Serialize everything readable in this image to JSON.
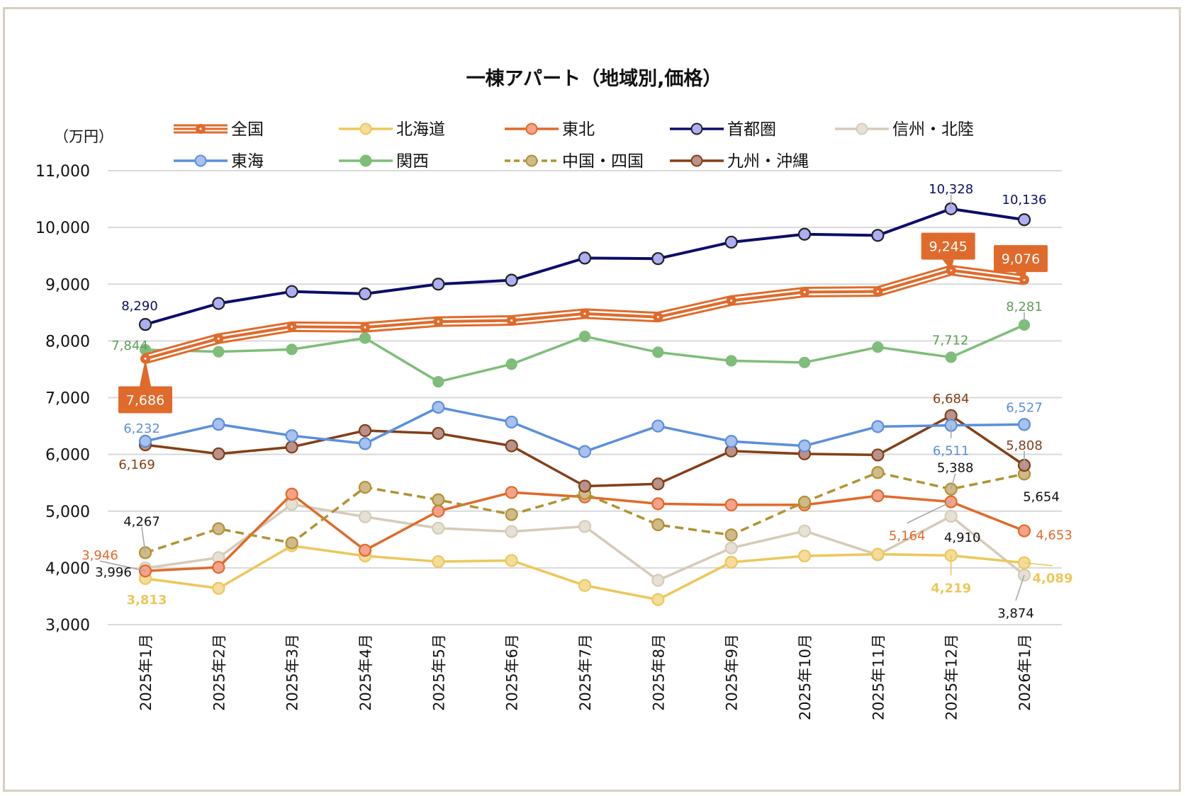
{
  "chart_data": {
    "type": "line",
    "title": "一棟アパート（地域別,価格）",
    "ylabel": "（万円）",
    "xlabel": "",
    "ylim": [
      3000,
      11000
    ],
    "yticks": [
      3000,
      4000,
      5000,
      6000,
      7000,
      8000,
      9000,
      10000,
      11000
    ],
    "ytick_labels": [
      "3,000",
      "4,000",
      "5,000",
      "6,000",
      "7,000",
      "8,000",
      "9,000",
      "10,000",
      "11,000"
    ],
    "grid": true,
    "legend_position": "top",
    "categories": [
      "2025年1月",
      "2025年2月",
      "2025年3月",
      "2025年4月",
      "2025年5月",
      "2025年6月",
      "2025年7月",
      "2025年8月",
      "2025年9月",
      "2025年10月",
      "2025年11月",
      "2025年12月",
      "2026年1月"
    ],
    "series": [
      {
        "name": "全国",
        "color": "#e06a2b",
        "marker_fill": "#e06a2b",
        "style": "triple",
        "values": [
          7686,
          8040,
          8250,
          8240,
          8340,
          8360,
          8480,
          8420,
          8710,
          8860,
          8870,
          9245,
          9076
        ]
      },
      {
        "name": "北海道",
        "color": "#ecc85a",
        "marker_fill": "#f5dc9c",
        "style": "solid",
        "values": [
          3813,
          3640,
          4390,
          4210,
          4110,
          4130,
          3690,
          3440,
          4100,
          4210,
          4240,
          4219,
          4089
        ]
      },
      {
        "name": "東北",
        "color": "#e06a2b",
        "marker_fill": "#f4a38a",
        "style": "solid",
        "values": [
          3946,
          4010,
          5300,
          4310,
          5000,
          5330,
          5250,
          5130,
          5110,
          5110,
          5270,
          5164,
          4653
        ]
      },
      {
        "name": "首都圏",
        "color": "#0d0d6b",
        "marker_fill": "#aeaef5",
        "marker_stroke": "#222222",
        "style": "solid",
        "values": [
          8290,
          8660,
          8870,
          8830,
          9000,
          9070,
          9460,
          9450,
          9740,
          9880,
          9860,
          10328,
          10136
        ]
      },
      {
        "name": "信州・北陸",
        "color": "#d5cbb8",
        "marker_fill": "#e7e0d5",
        "style": "solid",
        "values": [
          3996,
          4180,
          5120,
          4900,
          4700,
          4640,
          4730,
          3780,
          4350,
          4650,
          4230,
          4910,
          3874
        ]
      },
      {
        "name": "東海",
        "color": "#5b8fdc",
        "marker_fill": "#a8c1ef",
        "style": "solid",
        "values": [
          6232,
          6530,
          6330,
          6190,
          6830,
          6570,
          6050,
          6500,
          6230,
          6150,
          6490,
          6511,
          6527
        ]
      },
      {
        "name": "関西",
        "color": "#7fbd7a",
        "marker_fill": "#7fbd7a",
        "style": "solid",
        "values": [
          7844,
          7810,
          7850,
          8050,
          7280,
          7590,
          8080,
          7800,
          7650,
          7620,
          7890,
          7712,
          8281
        ]
      },
      {
        "name": "中国・四国",
        "color": "#b09333",
        "marker_fill": "#d0b98a",
        "style": "dashed",
        "values": [
          4267,
          4690,
          4440,
          5420,
          5200,
          4940,
          5310,
          4760,
          4580,
          5160,
          5680,
          5388,
          5654
        ]
      },
      {
        "name": "九州・沖縄",
        "color": "#843f17",
        "marker_fill": "#b8928b",
        "style": "solid",
        "values": [
          6169,
          6010,
          6130,
          6420,
          6370,
          6150,
          5440,
          5480,
          6060,
          6010,
          5990,
          6684,
          5808
        ]
      }
    ],
    "annotations": [
      {
        "series": "全国",
        "index": 0,
        "text": "7,686",
        "boxed": true
      },
      {
        "series": "全国",
        "index": 11,
        "text": "9,245",
        "boxed": true
      },
      {
        "series": "全国",
        "index": 12,
        "text": "9,076",
        "boxed": true
      },
      {
        "series": "首都圏",
        "index": 0,
        "text": "8,290"
      },
      {
        "series": "首都圏",
        "index": 11,
        "text": "10,328"
      },
      {
        "series": "首都圏",
        "index": 12,
        "text": "10,136"
      },
      {
        "series": "関西",
        "index": 0,
        "text": "7,844"
      },
      {
        "series": "関西",
        "index": 11,
        "text": "7,712"
      },
      {
        "series": "関西",
        "index": 12,
        "text": "8,281"
      },
      {
        "series": "東海",
        "index": 0,
        "text": "6,232"
      },
      {
        "series": "東海",
        "index": 11,
        "text": "6,511"
      },
      {
        "series": "東海",
        "index": 12,
        "text": "6,527"
      },
      {
        "series": "九州・沖縄",
        "index": 0,
        "text": "6,169"
      },
      {
        "series": "九州・沖縄",
        "index": 11,
        "text": "6,684"
      },
      {
        "series": "九州・沖縄",
        "index": 12,
        "text": "5,808"
      },
      {
        "series": "中国・四国",
        "index": 0,
        "text": "4,267"
      },
      {
        "series": "中国・四国",
        "index": 11,
        "text": "5,388"
      },
      {
        "series": "中国・四国",
        "index": 12,
        "text": "5,654"
      },
      {
        "series": "東北",
        "index": 0,
        "text": "3,946"
      },
      {
        "series": "東北",
        "index": 11,
        "text": "5,164"
      },
      {
        "series": "東北",
        "index": 12,
        "text": "4,653"
      },
      {
        "series": "信州・北陸",
        "index": 0,
        "text": "3,996"
      },
      {
        "series": "信州・北陸",
        "index": 11,
        "text": "4,910"
      },
      {
        "series": "信州・北陸",
        "index": 12,
        "text": "3,874"
      },
      {
        "series": "北海道",
        "index": 0,
        "text": "3,813",
        "bold": true
      },
      {
        "series": "北海道",
        "index": 11,
        "text": "4,219",
        "bold": true
      },
      {
        "series": "北海道",
        "index": 12,
        "text": "4,089",
        "bold": true
      }
    ]
  }
}
